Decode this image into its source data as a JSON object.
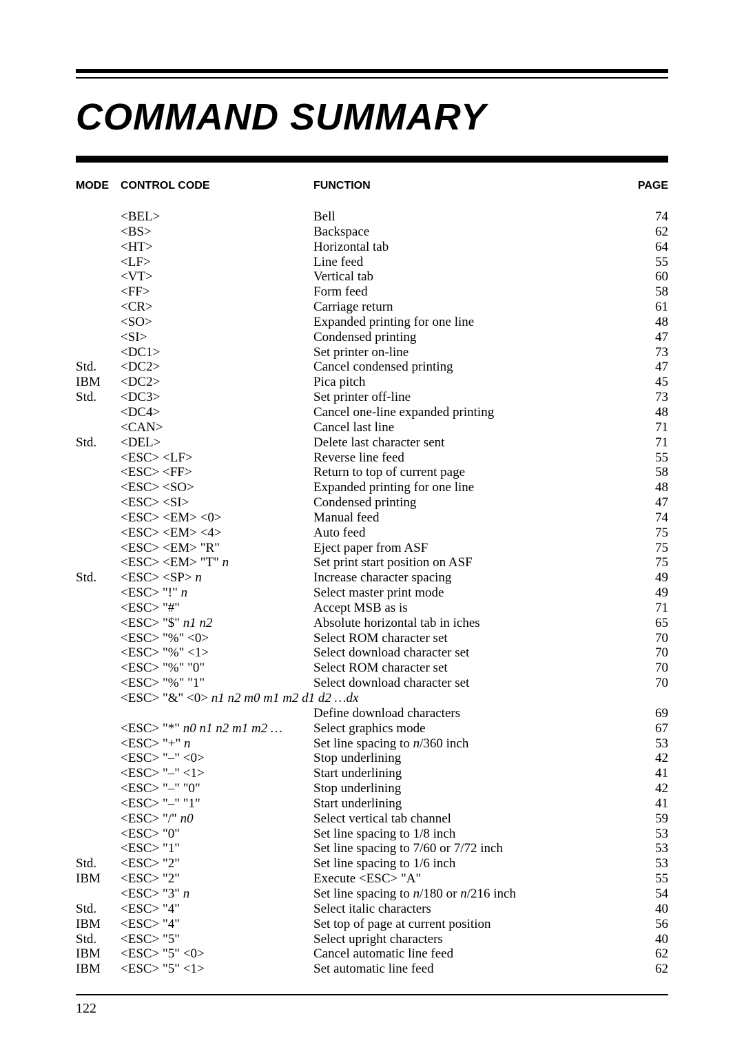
{
  "title": "COMMAND SUMMARY",
  "headers": {
    "mode": "MODE",
    "code": "CONTROL CODE",
    "func": "FUNCTION",
    "page": "PAGE"
  },
  "page_number": "122",
  "rows": [
    {
      "mode": "",
      "code": "<BEL>",
      "func": "Bell",
      "page": "74"
    },
    {
      "mode": "",
      "code": "<BS>",
      "func": "Backspace",
      "page": "62"
    },
    {
      "mode": "",
      "code": "<HT>",
      "func": "Horizontal tab",
      "page": "64"
    },
    {
      "mode": "",
      "code": "<LF>",
      "func": "Line feed",
      "page": "55"
    },
    {
      "mode": "",
      "code": "<VT>",
      "func": "Vertical tab",
      "page": "60"
    },
    {
      "mode": "",
      "code": "<FF>",
      "func": "Form feed",
      "page": "58"
    },
    {
      "mode": "",
      "code": "<CR>",
      "func": "Carriage return",
      "page": "61"
    },
    {
      "mode": "",
      "code": "<SO>",
      "func": "Expanded printing for one line",
      "page": "48"
    },
    {
      "mode": "",
      "code": "<SI>",
      "func": "Condensed printing",
      "page": "47"
    },
    {
      "mode": "",
      "code": "<DC1>",
      "func": "Set printer on-line",
      "page": "73"
    },
    {
      "mode": "Std.",
      "code": "<DC2>",
      "func": "Cancel condensed printing",
      "page": "47"
    },
    {
      "mode": "IBM",
      "code": "<DC2>",
      "func": "Pica pitch",
      "page": "45"
    },
    {
      "mode": "Std.",
      "code": "<DC3>",
      "func": "Set printer off-line",
      "page": "73"
    },
    {
      "mode": "",
      "code": "<DC4>",
      "func": "Cancel one-line expanded printing",
      "page": "48"
    },
    {
      "mode": "",
      "code": "<CAN>",
      "func": "Cancel last line",
      "page": "71"
    },
    {
      "mode": "Std.",
      "code": "<DEL>",
      "func": "Delete last character sent",
      "page": "71"
    },
    {
      "mode": "",
      "code": "<ESC> <LF>",
      "func": "Reverse line feed",
      "page": "55"
    },
    {
      "mode": "",
      "code": "<ESC> <FF>",
      "func": "Return to top of current page",
      "page": "58"
    },
    {
      "mode": "",
      "code": "<ESC> <SO>",
      "func": "Expanded printing for one line",
      "page": "48"
    },
    {
      "mode": "",
      "code": "<ESC> <SI>",
      "func": "Condensed printing",
      "page": "47"
    },
    {
      "mode": "",
      "code": "<ESC> <EM> <0>",
      "func": "Manual feed",
      "page": "74"
    },
    {
      "mode": "",
      "code": "<ESC> <EM> <4>",
      "func": "Auto feed",
      "page": "75"
    },
    {
      "mode": "",
      "code": "<ESC> <EM> \"R\"",
      "func": "Eject paper from ASF",
      "page": "75"
    },
    {
      "mode": "",
      "code": "<ESC> <EM> \"T\" |n|",
      "func": "Set print start position on ASF",
      "page": "75"
    },
    {
      "mode": "Std.",
      "code": "<ESC> <SP> |n|",
      "func": "Increase character spacing",
      "page": "49"
    },
    {
      "mode": "",
      "code": "<ESC> \"!\" |n|",
      "func": "Select master print mode",
      "page": "49"
    },
    {
      "mode": "",
      "code": "<ESC> \"#\"",
      "func": "Accept MSB as is",
      "page": "71"
    },
    {
      "mode": "",
      "code": "<ESC> \"$\" |n1 n2|",
      "func": "Absolute horizontal tab in iches",
      "page": "65"
    },
    {
      "mode": "",
      "code": "<ESC> \"%\" <0>",
      "func": "Select ROM character set",
      "page": "70"
    },
    {
      "mode": "",
      "code": "<ESC> \"%\" <1>",
      "func": "Select download character set",
      "page": "70"
    },
    {
      "mode": "",
      "code": "<ESC> \"%\" \"0\"",
      "func": "Select ROM character set",
      "page": "70"
    },
    {
      "mode": "",
      "code": "<ESC> \"%\" \"1\"",
      "func": "Select download character set",
      "page": "70"
    },
    {
      "mode": "",
      "code": "<ESC> \"&\" <0> |n1 n2 m0 m1 m2 d1 d2 …dx|",
      "func": "",
      "page": "",
      "long": true
    },
    {
      "mode": "",
      "code": "",
      "func": "Define download characters",
      "page": "69"
    },
    {
      "mode": "",
      "code": "<ESC> \"*\" |n0 n1 n2 m1 m2 …|",
      "func": "Select graphics mode",
      "page": "67"
    },
    {
      "mode": "",
      "code": "<ESC> \"+\" |n|",
      "func": "Set line spacing to |n|/360 inch",
      "page": "53"
    },
    {
      "mode": "",
      "code": "<ESC> \"–\" <0>",
      "func": "Stop underlining",
      "page": "42"
    },
    {
      "mode": "",
      "code": "<ESC> \"–\" <1>",
      "func": "Start underlining",
      "page": "41"
    },
    {
      "mode": "",
      "code": "<ESC> \"–\" \"0\"",
      "func": "Stop underlining",
      "page": "42"
    },
    {
      "mode": "",
      "code": "<ESC> \"–\" \"1\"",
      "func": "Start underlining",
      "page": "41"
    },
    {
      "mode": "",
      "code": "<ESC> \"/\" |n0|",
      "func": "Select vertical tab channel",
      "page": "59"
    },
    {
      "mode": "",
      "code": "<ESC> \"0\"",
      "func": "Set line spacing to 1/8 inch",
      "page": "53"
    },
    {
      "mode": "",
      "code": "<ESC> \"1\"",
      "func": "Set line spacing to 7/60 or 7/72 inch",
      "page": "53"
    },
    {
      "mode": "Std.",
      "code": "<ESC> \"2\"",
      "func": "Set line spacing to 1/6 inch",
      "page": "53"
    },
    {
      "mode": "IBM",
      "code": "<ESC> \"2\"",
      "func": "Execute <ESC> \"A\"",
      "page": "55"
    },
    {
      "mode": "",
      "code": "<ESC> \"3\" |n|",
      "func": "Set line spacing to |n|/180 or |n|/216 inch",
      "page": "54"
    },
    {
      "mode": "Std.",
      "code": "<ESC> \"4\"",
      "func": "Select italic characters",
      "page": "40"
    },
    {
      "mode": "IBM",
      "code": "<ESC> \"4\"",
      "func": "Set top of page at current position",
      "page": "56"
    },
    {
      "mode": "Std.",
      "code": "<ESC> \"5\"",
      "func": "Select upright characters",
      "page": "40"
    },
    {
      "mode": "IBM",
      "code": "<ESC> \"5\" <0>",
      "func": "Cancel automatic line feed",
      "page": "62"
    },
    {
      "mode": "IBM",
      "code": "<ESC> \"5\" <1>",
      "func": "Set automatic line feed",
      "page": "62"
    }
  ]
}
